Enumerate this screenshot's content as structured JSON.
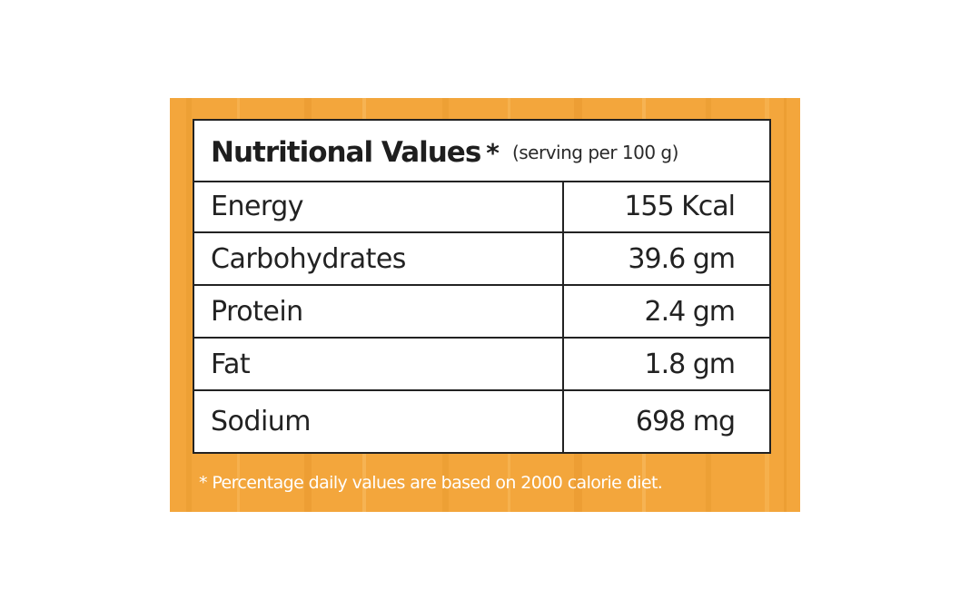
{
  "title": "Nutritional Values",
  "title_marker": "*",
  "serving_note": "(serving per 100 g)",
  "rows": [
    {
      "name": "Energy",
      "value": "155 Kcal"
    },
    {
      "name": "Carbohydrates",
      "value": "39.6 gm"
    },
    {
      "name": "Protein",
      "value": "2.4 gm"
    },
    {
      "name": "Fat",
      "value": "1.8 gm"
    },
    {
      "name": "Sodium",
      "value": "698 mg"
    }
  ],
  "footnote": "* Percentage daily values are based on 2000 calorie diet.",
  "colors": {
    "panel": "#f3a63c",
    "border": "#222222",
    "text": "#222222",
    "footnote_text": "#ffffff"
  }
}
